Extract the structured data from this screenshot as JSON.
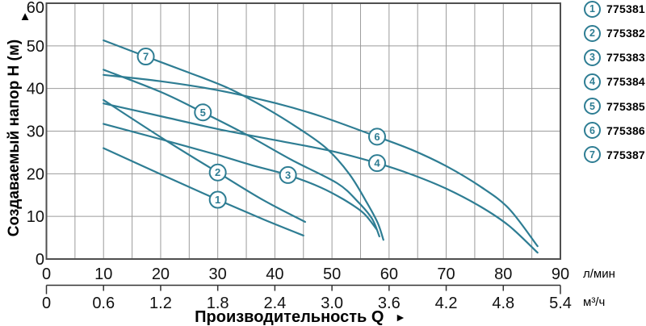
{
  "axes": {
    "ylabel": "Создаваемый напор H (м)",
    "ylabel_arrow": "▲",
    "xlabel": "Производительность Q",
    "xlabel_arrow": "►",
    "unit_primary": "л/мин",
    "unit_secondary": "м³/ч"
  },
  "legend": {
    "items": [
      {
        "num": "1",
        "code": "775381"
      },
      {
        "num": "2",
        "code": "775382"
      },
      {
        "num": "3",
        "code": "775383"
      },
      {
        "num": "4",
        "code": "775384"
      },
      {
        "num": "5",
        "code": "775385"
      },
      {
        "num": "6",
        "code": "775386"
      },
      {
        "num": "7",
        "code": "775387"
      }
    ]
  },
  "chart_data": {
    "type": "line",
    "title": "",
    "xlabel": "Производительность Q",
    "ylabel": "Создаваемый напор H (м)",
    "x_unit_primary": "л/мин",
    "x_unit_secondary": "м³/ч",
    "xlim": [
      0,
      90
    ],
    "ylim": [
      0,
      60
    ],
    "x_ticks_l_min": [
      "0",
      "10",
      "20",
      "30",
      "40",
      "50",
      "60",
      "70",
      "80",
      "90"
    ],
    "x_ticks_m3_h": [
      "0",
      "0.6",
      "1.2",
      "1.8",
      "2.4",
      "3.0",
      "3.6",
      "4.2",
      "4.8",
      "5.4"
    ],
    "y_ticks": [
      "0",
      "10",
      "20",
      "30",
      "40",
      "50",
      "60"
    ],
    "grid": {
      "x_step": 5,
      "y_step": 10,
      "on": true
    },
    "legend_position": "right",
    "colors": {
      "curve": "#2e7d93",
      "grid": "#9b9b9b",
      "frame": "#4f4f4f",
      "axis": "#333333",
      "text": "#111111"
    },
    "series": [
      {
        "label": "1",
        "code": "775381",
        "label_at": [
          30,
          13.9
        ],
        "points": [
          [
            10,
            26
          ],
          [
            20,
            19.9
          ],
          [
            30,
            13.9
          ],
          [
            38,
            9.3
          ],
          [
            45,
            5.5
          ]
        ]
      },
      {
        "label": "2",
        "code": "775382",
        "label_at": [
          30,
          20.3
        ],
        "points": [
          [
            10,
            37.3
          ],
          [
            20,
            28.6
          ],
          [
            30,
            20.3
          ],
          [
            38,
            13.8
          ],
          [
            45.3,
            8.7
          ]
        ]
      },
      {
        "label": "3",
        "code": "775383",
        "label_at": [
          42.3,
          19.7
        ],
        "points": [
          [
            10,
            31.7
          ],
          [
            20,
            28.1
          ],
          [
            30,
            24.4
          ],
          [
            36,
            22
          ],
          [
            42.3,
            19.7
          ],
          [
            48,
            16.8
          ],
          [
            52,
            14
          ],
          [
            55.5,
            10.8
          ],
          [
            57.8,
            7
          ]
        ]
      },
      {
        "label": "4",
        "code": "775384",
        "label_at": [
          57.9,
          22.5
        ],
        "points": [
          [
            10,
            36.5
          ],
          [
            20,
            33.5
          ],
          [
            30,
            30.5
          ],
          [
            40,
            27.9
          ],
          [
            50,
            25.3
          ],
          [
            57.9,
            22.5
          ],
          [
            64,
            19.8
          ],
          [
            70,
            16.5
          ],
          [
            76,
            12.3
          ],
          [
            81,
            7.8
          ],
          [
            86,
            1.5
          ]
        ]
      },
      {
        "label": "5",
        "code": "775385",
        "label_at": [
          27.4,
          34.4
        ],
        "points": [
          [
            10,
            44.4
          ],
          [
            20,
            39.2
          ],
          [
            27.4,
            34.4
          ],
          [
            35,
            29.2
          ],
          [
            43,
            23.2
          ],
          [
            50.9,
            17.8
          ],
          [
            54.5,
            13.5
          ],
          [
            57,
            9.5
          ],
          [
            58.3,
            5.3
          ]
        ]
      },
      {
        "label": "6",
        "code": "775386",
        "label_at": [
          57.9,
          28.7
        ],
        "points": [
          [
            10,
            43.2
          ],
          [
            20,
            41.7
          ],
          [
            30,
            39.6
          ],
          [
            40,
            36.6
          ],
          [
            48,
            33.5
          ],
          [
            57.9,
            28.7
          ],
          [
            64,
            25.6
          ],
          [
            70,
            21.8
          ],
          [
            76,
            17
          ],
          [
            81,
            11.8
          ],
          [
            86,
            3
          ]
        ]
      },
      {
        "label": "7",
        "code": "775387",
        "label_at": [
          17.4,
          47.5
        ],
        "points": [
          [
            10,
            51.3
          ],
          [
            17.4,
            47.5
          ],
          [
            25,
            43.7
          ],
          [
            32,
            40
          ],
          [
            38.3,
            35.5
          ],
          [
            44,
            30.8
          ],
          [
            49,
            26
          ],
          [
            53,
            20
          ],
          [
            56,
            13.5
          ],
          [
            58,
            8.5
          ],
          [
            59,
            4.5
          ]
        ]
      }
    ]
  }
}
